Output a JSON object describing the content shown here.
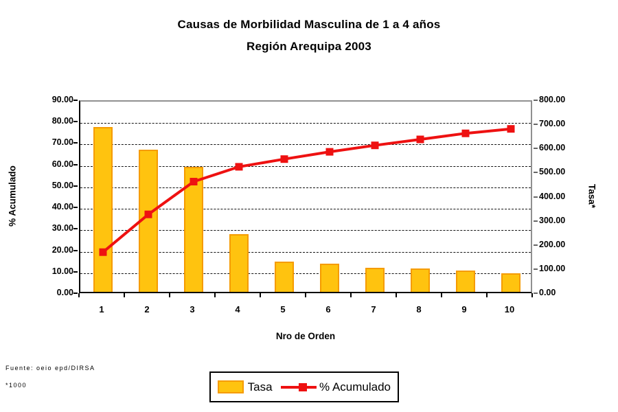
{
  "title": {
    "line1": "Causas de Morbilidad Masculina de 1 a 4 años",
    "line2": "Región Arequipa 2003"
  },
  "footer": {
    "source": "Fuente: oeio epd/DIRSA",
    "note": "*1000"
  },
  "colors": {
    "bar_fill": "#FFC30F",
    "bar_border": "#F59B00",
    "line_red": "#EE1111",
    "plot_border_gray": "#909090",
    "gridline": "#111111"
  },
  "chart_data": {
    "type": "bar",
    "subtype": "pareto-combo-bar-line",
    "title": "Causas de Morbilidad Masculina de 1 a 4 años — Región Arequipa 2003",
    "categories": [
      "1",
      "2",
      "3",
      "4",
      "5",
      "6",
      "7",
      "8",
      "9",
      "10"
    ],
    "xlabel": "Nro de Orden",
    "series": [
      {
        "name": "Tasa",
        "type": "bar",
        "axis": "right",
        "color": "#FFC30F",
        "values": [
          684,
          588,
          519,
          238,
          124,
          116,
          100,
          96,
          88,
          77
        ]
      },
      {
        "name": "% Acumulado",
        "type": "line",
        "axis": "left",
        "color": "#EE1111",
        "marker": "square",
        "values": [
          19.8,
          37.4,
          52.7,
          59.6,
          63.2,
          66.6,
          69.6,
          72.4,
          75.2,
          77.3
        ]
      }
    ],
    "left_axis": {
      "label": "% Acumulado",
      "min": 0,
      "max": 90,
      "step": 10,
      "tick_labels": [
        "0.00",
        "10.00",
        "20.00",
        "30.00",
        "40.00",
        "50.00",
        "60.00",
        "70.00",
        "80.00",
        "90.00"
      ]
    },
    "right_axis": {
      "label": "Tasa*",
      "min": 0,
      "max": 800,
      "step": 100,
      "tick_labels": [
        "0.00",
        "100.00",
        "200.00",
        "300.00",
        "400.00",
        "500.00",
        "600.00",
        "700.00",
        "800.00"
      ]
    },
    "grid": "horizontal-dashed",
    "legend": {
      "position": "bottom-center",
      "entries": [
        "Tasa",
        "% Acumulado"
      ]
    }
  }
}
